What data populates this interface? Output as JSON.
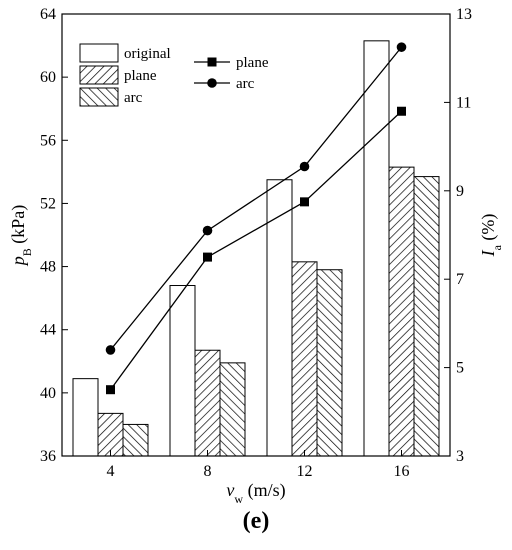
{
  "figure_label": "(e)",
  "chart_data": {
    "type": "bar",
    "categories": [
      "4",
      "8",
      "12",
      "16"
    ],
    "xlabel": {
      "main": "v",
      "sub": "w",
      "unit": " (m/s)"
    },
    "ylabel_left": {
      "main": "p",
      "sub": "B",
      "unit": " (kPa)"
    },
    "ylabel_right": {
      "main": "I",
      "sub": "a",
      "unit": " (%)"
    },
    "ylim_left": [
      36,
      64
    ],
    "yticks_left": [
      "36",
      "40",
      "44",
      "48",
      "52",
      "56",
      "60",
      "64"
    ],
    "ylim_right": [
      3,
      13
    ],
    "yticks_right": [
      "3",
      "5",
      "7",
      "9",
      "11",
      "13"
    ],
    "bar_series": [
      {
        "name": "original",
        "fill": "none",
        "values": [
          40.9,
          46.8,
          53.5,
          62.3
        ]
      },
      {
        "name": "plane",
        "fill": "hatch-back",
        "values": [
          38.7,
          42.7,
          48.3,
          54.3
        ]
      },
      {
        "name": "arc",
        "fill": "hatch-fwd",
        "values": [
          38.0,
          41.9,
          47.8,
          53.7
        ]
      }
    ],
    "line_series": [
      {
        "name": "plane",
        "marker": "square",
        "axis": "right",
        "values": [
          4.5,
          7.5,
          8.75,
          10.8
        ]
      },
      {
        "name": "arc",
        "marker": "circle",
        "axis": "right",
        "values": [
          5.4,
          8.1,
          9.55,
          12.25
        ]
      }
    ],
    "colors": {
      "axis": "#000000",
      "bar_outline": "#000000",
      "line": "#000000",
      "background": "#ffffff"
    }
  }
}
